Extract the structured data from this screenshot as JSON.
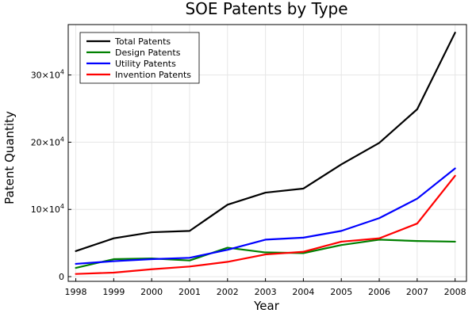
{
  "chart_data": {
    "type": "line",
    "title": "SOE Patents by Type",
    "xlabel": "Year",
    "ylabel": "Patent Quantity",
    "x": [
      1998,
      1999,
      2000,
      2001,
      2002,
      2003,
      2004,
      2005,
      2006,
      2007,
      2008
    ],
    "xlim": [
      1997.8,
      2008.3
    ],
    "ylim": [
      -700,
      37500
    ],
    "x_ticks": [
      "1998",
      "1999",
      "2000",
      "2001",
      "2002",
      "2003",
      "2004",
      "2005",
      "2006",
      "2007",
      "2008"
    ],
    "y_ticks": [
      {
        "value": 0,
        "base": "0",
        "exp": ""
      },
      {
        "value": 10000,
        "base": "10×10",
        "exp": "4"
      },
      {
        "value": 20000,
        "base": "20×10",
        "exp": "4"
      },
      {
        "value": 30000,
        "base": "30×10",
        "exp": "4"
      }
    ],
    "grid": true,
    "legend_position": "top-left",
    "series": [
      {
        "name": "Total Patents",
        "color": "#000000",
        "values": [
          3800,
          5700,
          6600,
          6800,
          10700,
          12500,
          13100,
          16700,
          19900,
          24900,
          36300
        ]
      },
      {
        "name": "Design Patents",
        "color": "#008000",
        "values": [
          1300,
          2600,
          2700,
          2400,
          4300,
          3600,
          3500,
          4700,
          5500,
          5300,
          5200
        ]
      },
      {
        "name": "Utility Patents",
        "color": "#0000ff",
        "values": [
          1900,
          2300,
          2600,
          2800,
          4000,
          5500,
          5800,
          6800,
          8700,
          11600,
          16100
        ]
      },
      {
        "name": "Invention Patents",
        "color": "#ff0000",
        "values": [
          400,
          600,
          1100,
          1500,
          2200,
          3300,
          3700,
          5200,
          5700,
          7900,
          15000
        ]
      }
    ]
  }
}
